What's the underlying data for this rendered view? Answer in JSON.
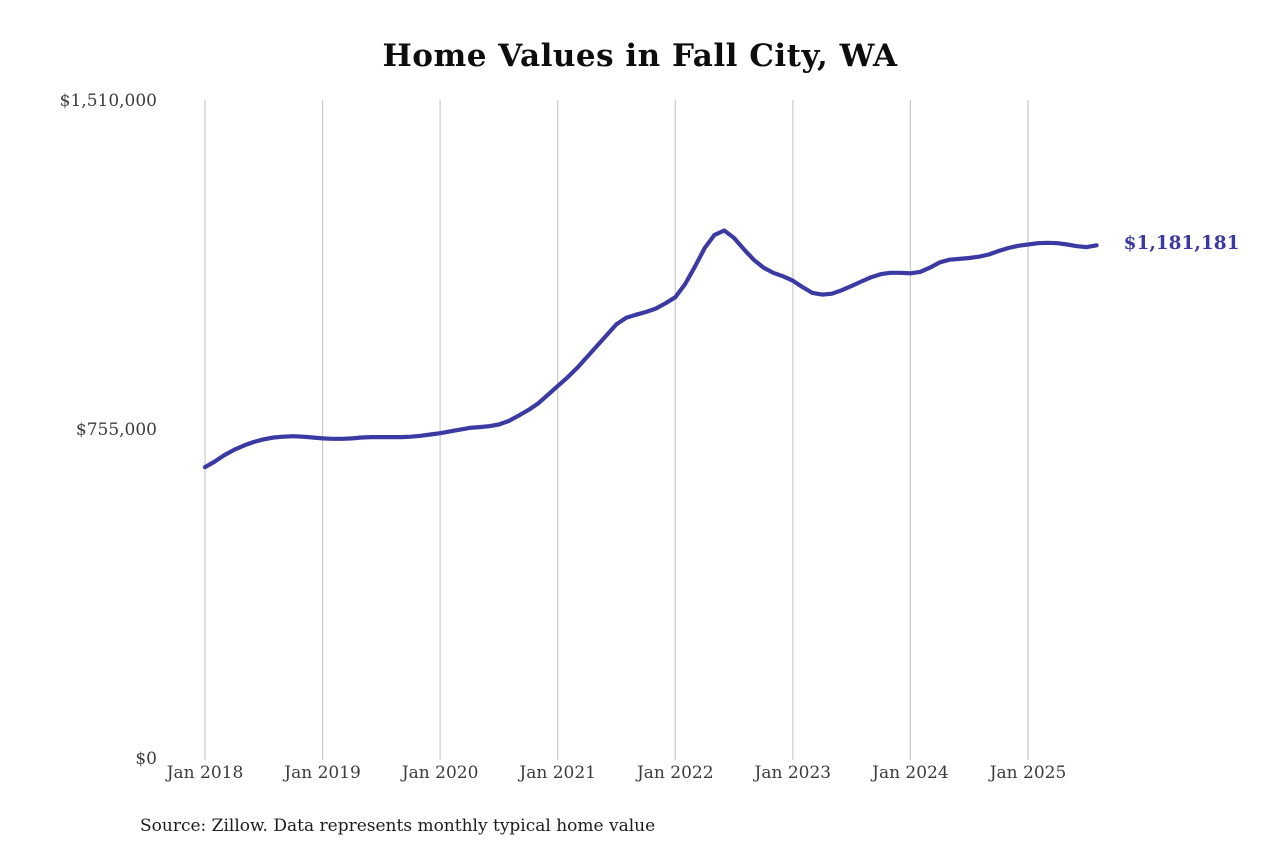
{
  "title": "Home Values in Fall City, WA",
  "annotation": {
    "label": "$1,181,181",
    "color": "#3a3aa2"
  },
  "source": "Source: Zillow. Data represents monthly typical home value",
  "chart_data": {
    "type": "line",
    "title": "Home Values in Fall City, WA",
    "xlabel": "",
    "ylabel": "",
    "ylim": [
      0,
      1510000
    ],
    "grid": "vertical-only",
    "legend": false,
    "line_color": "#3a3aa2",
    "gridline_color": "#c9c9c9",
    "yticks": [
      {
        "value": 0,
        "label": "$0"
      },
      {
        "value": 755000,
        "label": "$755,000"
      },
      {
        "value": 1510000,
        "label": "$1,510,000"
      }
    ],
    "xticks": [
      {
        "month_index": 0,
        "label": "Jan 2018"
      },
      {
        "month_index": 12,
        "label": "Jan 2019"
      },
      {
        "month_index": 24,
        "label": "Jan 2020"
      },
      {
        "month_index": 36,
        "label": "Jan 2021"
      },
      {
        "month_index": 48,
        "label": "Jan 2022"
      },
      {
        "month_index": 60,
        "label": "Jan 2023"
      },
      {
        "month_index": 72,
        "label": "Jan 2024"
      },
      {
        "month_index": 84,
        "label": "Jan 2025"
      }
    ],
    "x": [
      "2018-01",
      "2018-02",
      "2018-03",
      "2018-04",
      "2018-05",
      "2018-06",
      "2018-07",
      "2018-08",
      "2018-09",
      "2018-10",
      "2018-11",
      "2018-12",
      "2019-01",
      "2019-02",
      "2019-03",
      "2019-04",
      "2019-05",
      "2019-06",
      "2019-07",
      "2019-08",
      "2019-09",
      "2019-10",
      "2019-11",
      "2019-12",
      "2020-01",
      "2020-02",
      "2020-03",
      "2020-04",
      "2020-05",
      "2020-06",
      "2020-07",
      "2020-08",
      "2020-09",
      "2020-10",
      "2020-11",
      "2020-12",
      "2021-01",
      "2021-02",
      "2021-03",
      "2021-04",
      "2021-05",
      "2021-06",
      "2021-07",
      "2021-08",
      "2021-09",
      "2021-10",
      "2021-11",
      "2021-12",
      "2022-01",
      "2022-02",
      "2022-03",
      "2022-04",
      "2022-05",
      "2022-06",
      "2022-07",
      "2022-08",
      "2022-09",
      "2022-10",
      "2022-11",
      "2022-12",
      "2023-01",
      "2023-02",
      "2023-03",
      "2023-04",
      "2023-05",
      "2023-06",
      "2023-07",
      "2023-08",
      "2023-09",
      "2023-10",
      "2023-11",
      "2023-12",
      "2024-01",
      "2024-02",
      "2024-03",
      "2024-04",
      "2024-05",
      "2024-06",
      "2024-07",
      "2024-08",
      "2024-09",
      "2024-10",
      "2024-11",
      "2024-12",
      "2025-01",
      "2025-02",
      "2025-03",
      "2025-04",
      "2025-05",
      "2025-06",
      "2025-07",
      "2025-08"
    ],
    "series": [
      {
        "name": "Monthly typical home value",
        "color": "#3a3aa2",
        "values": [
          672000,
          685000,
          700000,
          712000,
          722000,
          730000,
          736000,
          740000,
          742000,
          743000,
          742000,
          740000,
          738000,
          737000,
          737000,
          738000,
          740000,
          741000,
          741000,
          741000,
          741000,
          742000,
          744000,
          747000,
          750000,
          754000,
          758000,
          762000,
          764000,
          766000,
          770000,
          778000,
          790000,
          803000,
          818000,
          838000,
          858000,
          878000,
          900000,
          925000,
          950000,
          975000,
          1000000,
          1015000,
          1022000,
          1028000,
          1036000,
          1048000,
          1062000,
          1092000,
          1132000,
          1175000,
          1205000,
          1215000,
          1198000,
          1172000,
          1148000,
          1130000,
          1118000,
          1110000,
          1100000,
          1085000,
          1072000,
          1068000,
          1070000,
          1078000,
          1088000,
          1098000,
          1108000,
          1115000,
          1118000,
          1118000,
          1117000,
          1120000,
          1130000,
          1142000,
          1148000,
          1150000,
          1152000,
          1155000,
          1160000,
          1168000,
          1175000,
          1180000,
          1183000,
          1186000,
          1187000,
          1186000,
          1183000,
          1179000,
          1177000,
          1181181
        ]
      }
    ],
    "last_point_label": "$1,181,181"
  }
}
